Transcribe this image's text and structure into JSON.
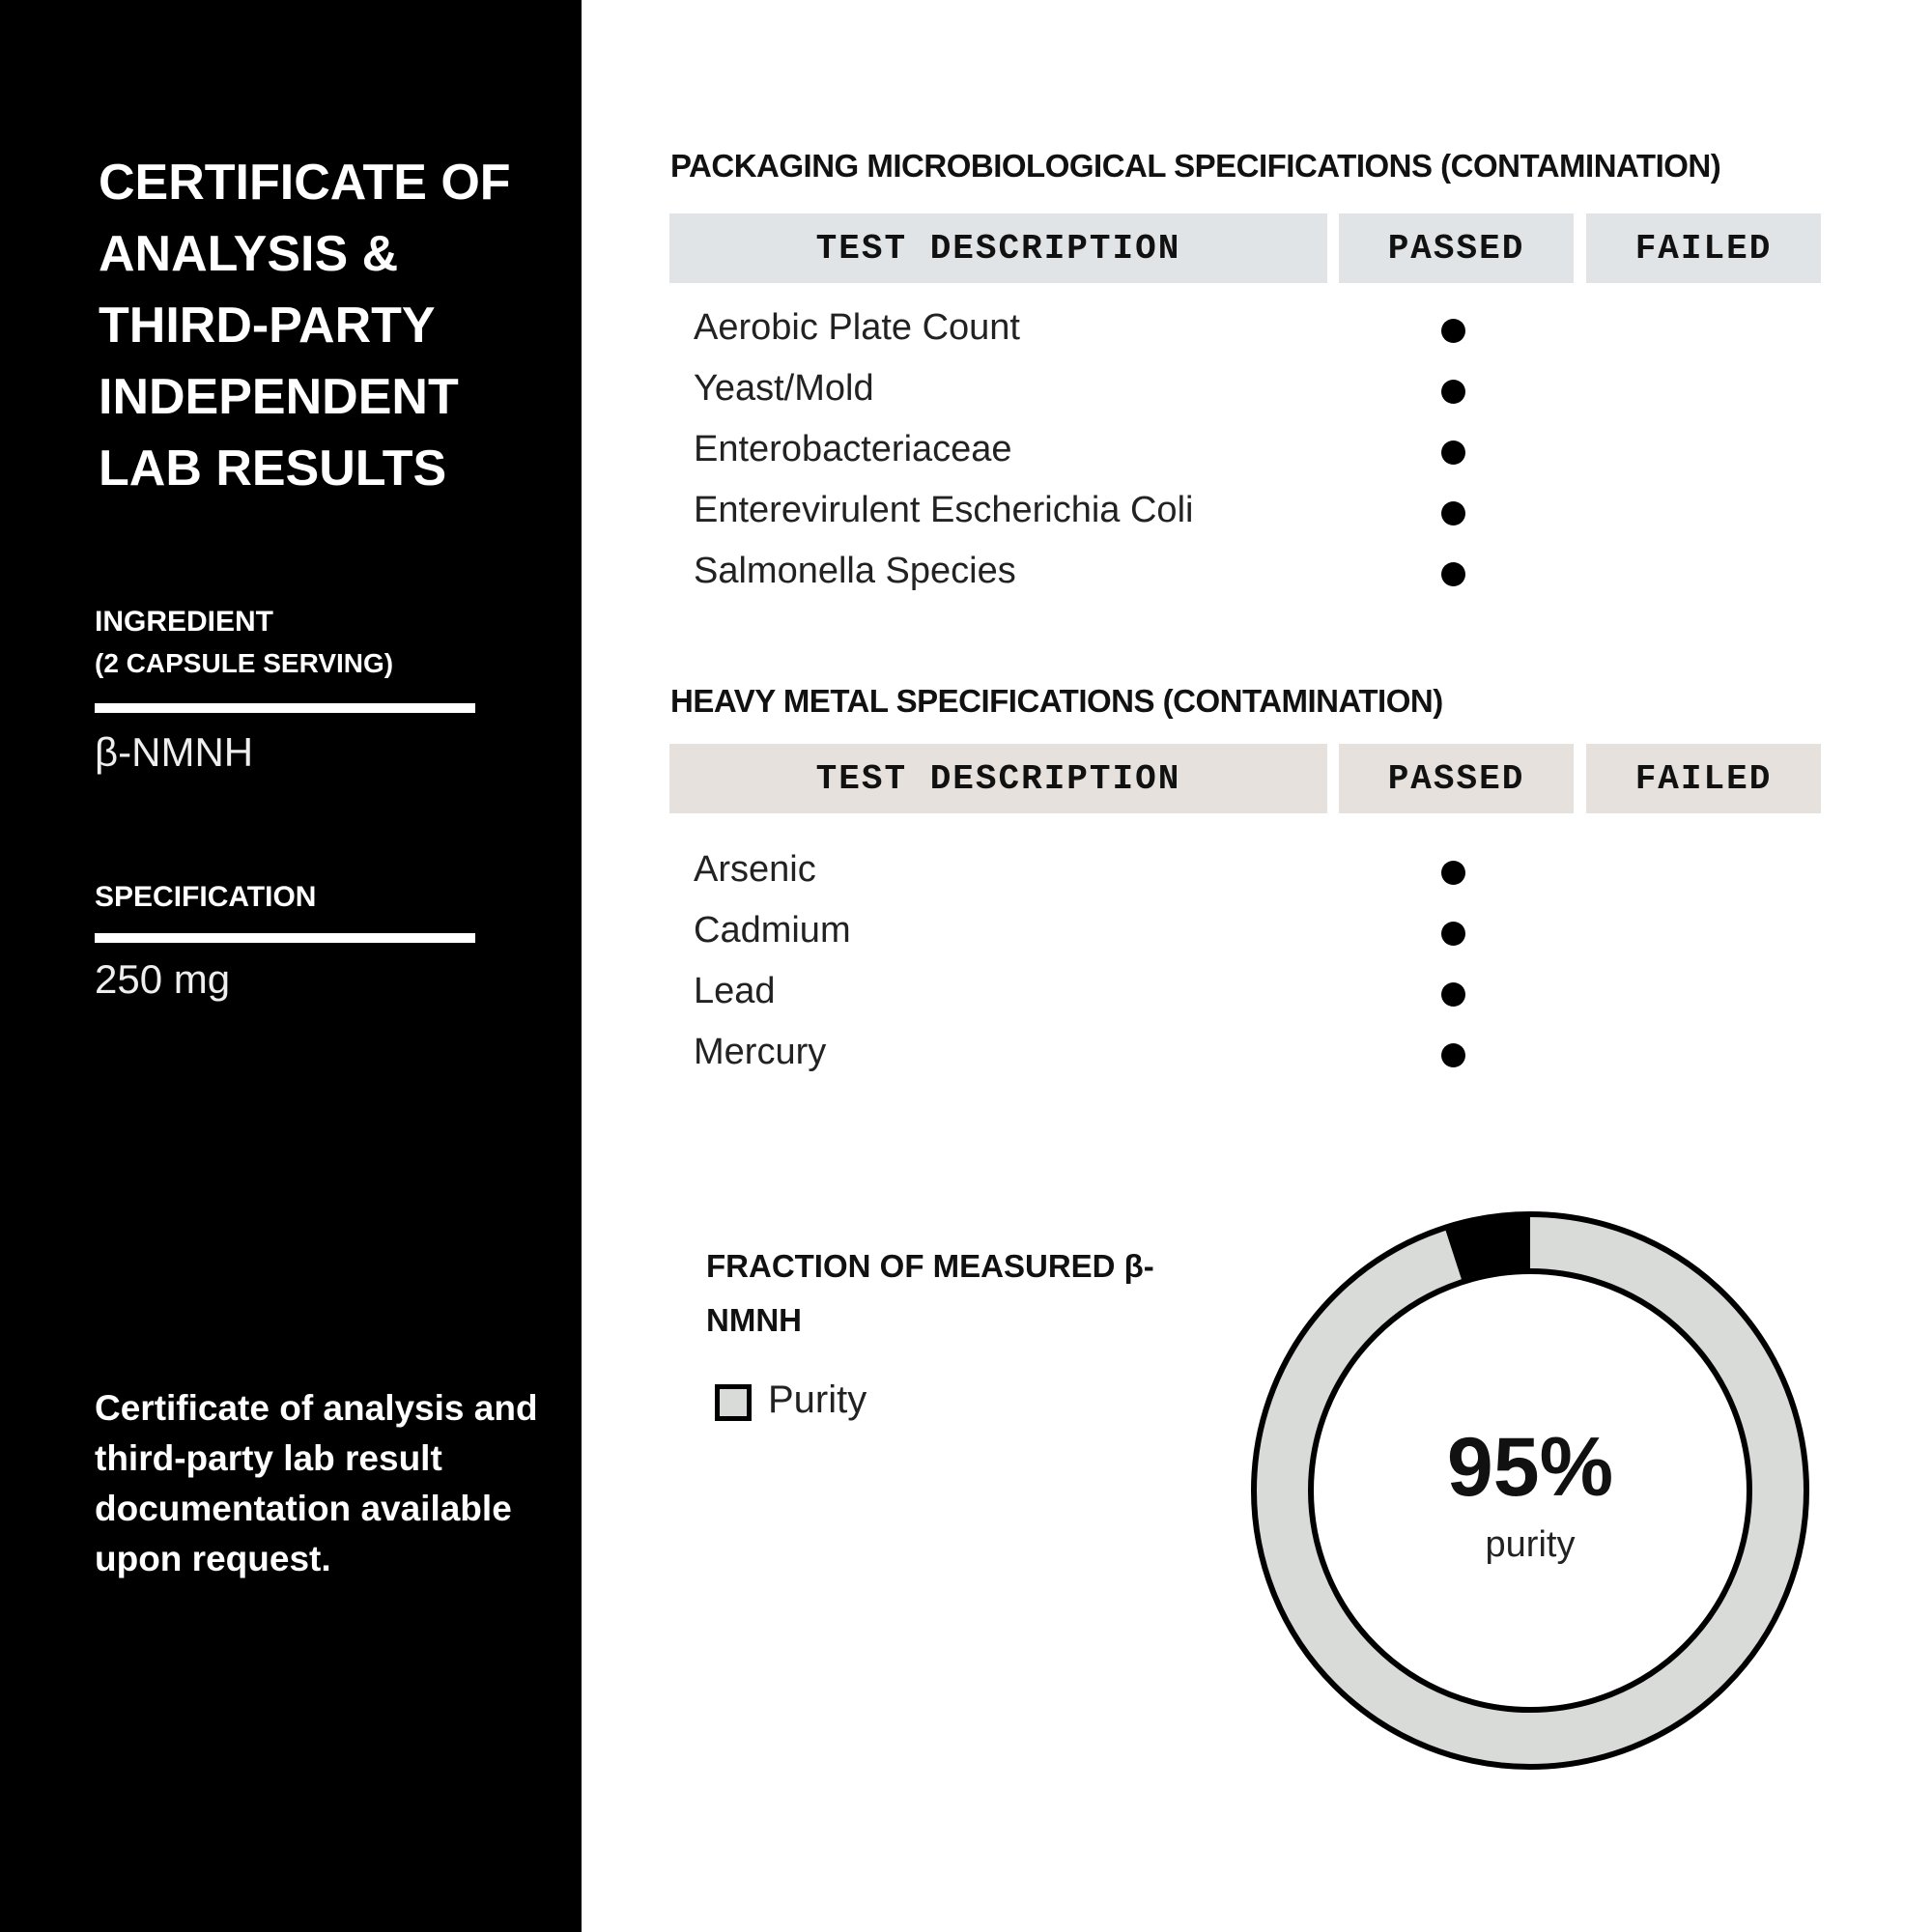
{
  "sidebar": {
    "title": "CERTIFICATE OF ANALYSIS & THIRD-PARTY INDEPENDENT LAB RESULTS",
    "ingredient_label": "INGREDIENT",
    "ingredient_sub": "(2 CAPSULE SERVING)",
    "ingredient_value": "β-NMNH",
    "spec_label": "SPECIFICATION",
    "spec_value": "250 mg",
    "note": "Certificate of analysis and third-party lab result documentation available upon request."
  },
  "micro": {
    "heading": "PACKAGING MICROBIOLOGICAL SPECIFICATIONS (CONTAMINATION)",
    "columns": [
      "TEST DESCRIPTION",
      "PASSED",
      "FAILED"
    ],
    "header_color": "#e1e4e6",
    "rows": [
      {
        "test": "Aerobic Plate Count",
        "result": "passed"
      },
      {
        "test": "Yeast/Mold",
        "result": "passed"
      },
      {
        "test": "Enterobacteriaceae",
        "result": "passed"
      },
      {
        "test": "Enterevirulent Escherichia Coli",
        "result": "passed"
      },
      {
        "test": "Salmonella Species",
        "result": "passed"
      }
    ]
  },
  "metal": {
    "heading": "HEAVY METAL SPECIFICATIONS (CONTAMINATION)",
    "columns": [
      "TEST DESCRIPTION",
      "PASSED",
      "FAILED"
    ],
    "header_color": "#e6e1dc",
    "rows": [
      {
        "test": "Arsenic",
        "result": "passed"
      },
      {
        "test": "Cadmium",
        "result": "passed"
      },
      {
        "test": "Lead",
        "result": "passed"
      },
      {
        "test": "Mercury",
        "result": "passed"
      }
    ]
  },
  "chart_data": {
    "type": "pie",
    "title": "FRACTION OF MEASURED β-NMNH",
    "legend": [
      {
        "name": "Purity",
        "color": "#d9dbd9"
      }
    ],
    "slices": [
      {
        "name": "Purity",
        "value": 95,
        "color": "#d9dbd9"
      },
      {
        "value": 5,
        "color": "#000000"
      }
    ],
    "center_value": "95%",
    "center_label": "purity"
  }
}
